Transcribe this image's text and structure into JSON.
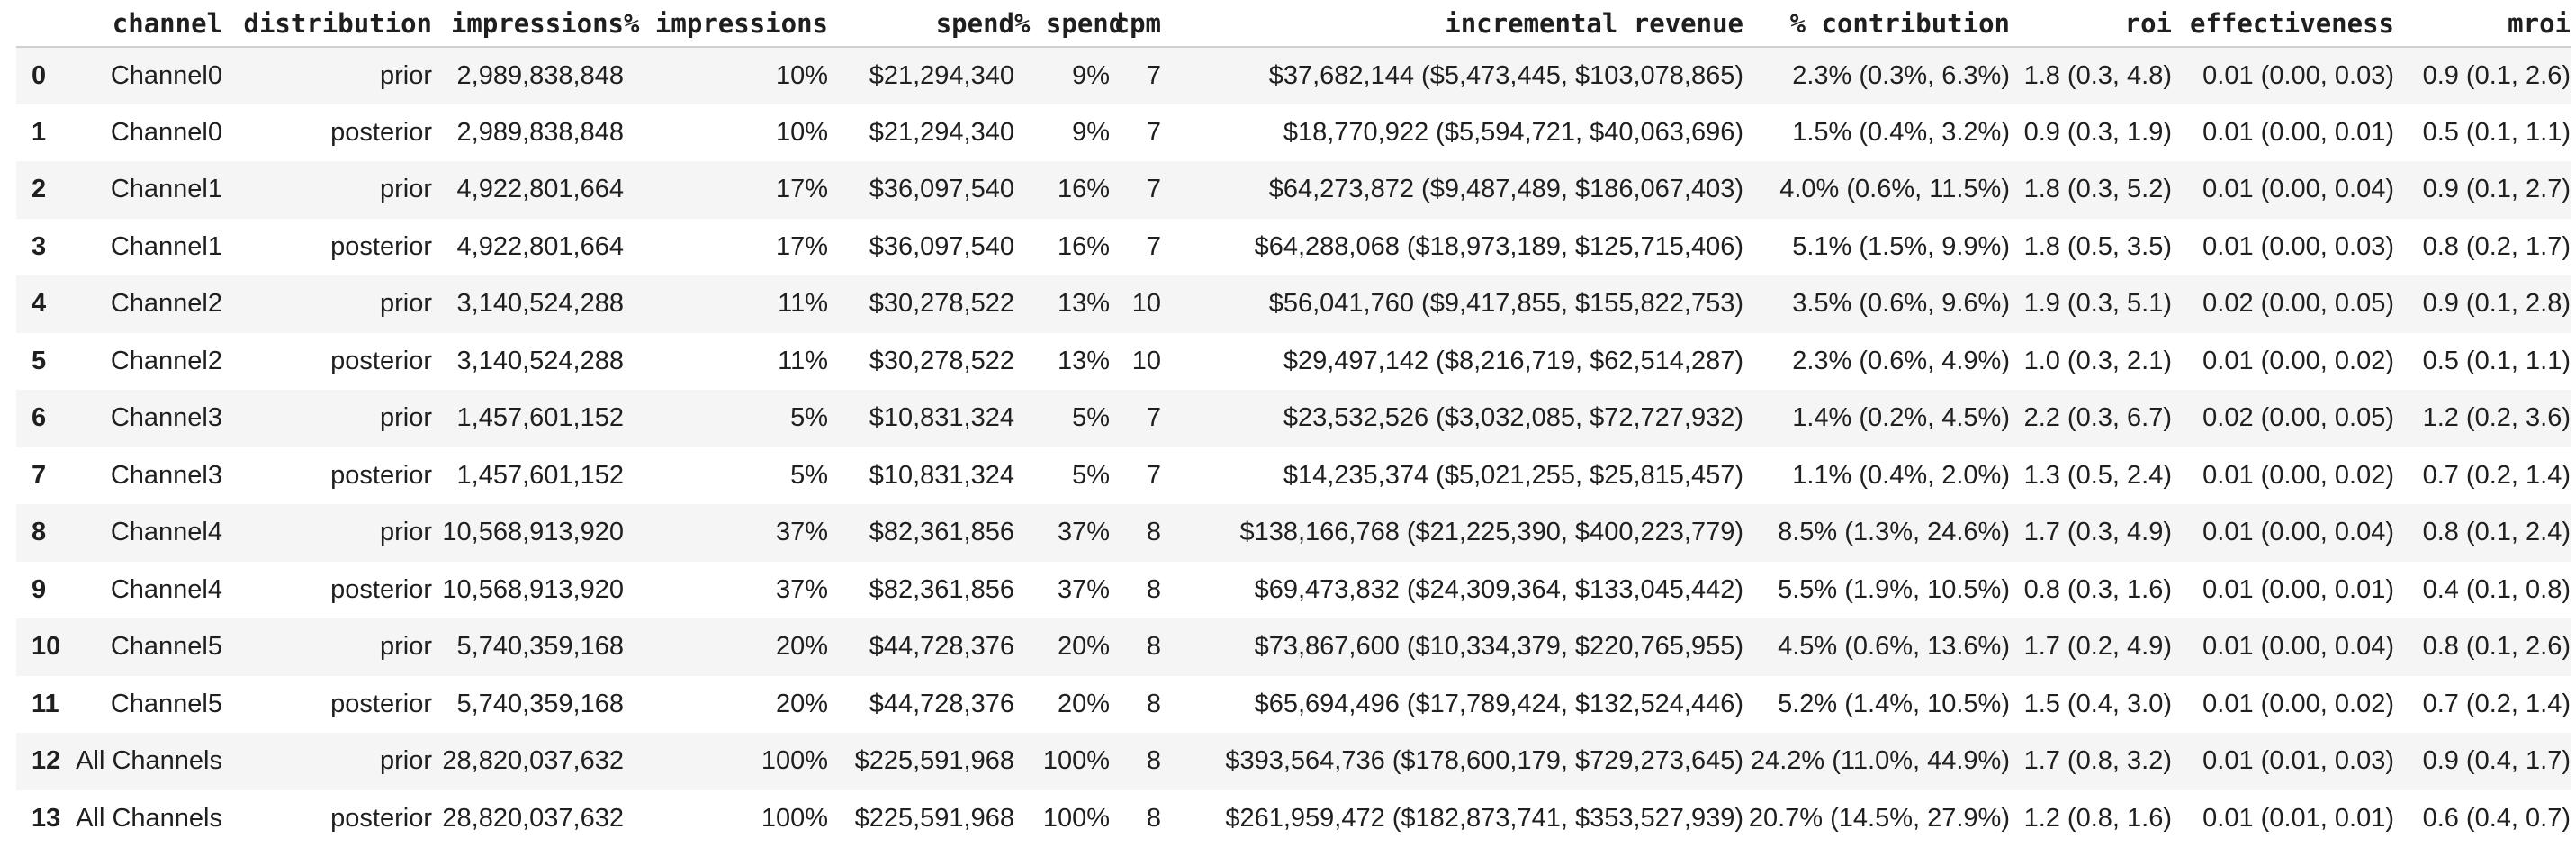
{
  "table": {
    "columns": [
      "",
      "channel",
      "distribution",
      "impressions",
      "% impressions",
      "spend",
      "% spend",
      "cpm",
      "incremental revenue",
      "% contribution",
      "roi",
      "effectiveness",
      "mroi"
    ],
    "rows": [
      [
        "0",
        "Channel0",
        "prior",
        "2,989,838,848",
        "10%",
        "$21,294,340",
        "9%",
        "7",
        "$37,682,144 ($5,473,445, $103,078,865)",
        "2.3% (0.3%, 6.3%)",
        "1.8 (0.3, 4.8)",
        "0.01 (0.00, 0.03)",
        "0.9 (0.1, 2.6)"
      ],
      [
        "1",
        "Channel0",
        "posterior",
        "2,989,838,848",
        "10%",
        "$21,294,340",
        "9%",
        "7",
        "$18,770,922 ($5,594,721, $40,063,696)",
        "1.5% (0.4%, 3.2%)",
        "0.9 (0.3, 1.9)",
        "0.01 (0.00, 0.01)",
        "0.5 (0.1, 1.1)"
      ],
      [
        "2",
        "Channel1",
        "prior",
        "4,922,801,664",
        "17%",
        "$36,097,540",
        "16%",
        "7",
        "$64,273,872 ($9,487,489, $186,067,403)",
        "4.0% (0.6%, 11.5%)",
        "1.8 (0.3, 5.2)",
        "0.01 (0.00, 0.04)",
        "0.9 (0.1, 2.7)"
      ],
      [
        "3",
        "Channel1",
        "posterior",
        "4,922,801,664",
        "17%",
        "$36,097,540",
        "16%",
        "7",
        "$64,288,068 ($18,973,189, $125,715,406)",
        "5.1% (1.5%, 9.9%)",
        "1.8 (0.5, 3.5)",
        "0.01 (0.00, 0.03)",
        "0.8 (0.2, 1.7)"
      ],
      [
        "4",
        "Channel2",
        "prior",
        "3,140,524,288",
        "11%",
        "$30,278,522",
        "13%",
        "10",
        "$56,041,760 ($9,417,855, $155,822,753)",
        "3.5% (0.6%, 9.6%)",
        "1.9 (0.3, 5.1)",
        "0.02 (0.00, 0.05)",
        "0.9 (0.1, 2.8)"
      ],
      [
        "5",
        "Channel2",
        "posterior",
        "3,140,524,288",
        "11%",
        "$30,278,522",
        "13%",
        "10",
        "$29,497,142 ($8,216,719, $62,514,287)",
        "2.3% (0.6%, 4.9%)",
        "1.0 (0.3, 2.1)",
        "0.01 (0.00, 0.02)",
        "0.5 (0.1, 1.1)"
      ],
      [
        "6",
        "Channel3",
        "prior",
        "1,457,601,152",
        "5%",
        "$10,831,324",
        "5%",
        "7",
        "$23,532,526 ($3,032,085, $72,727,932)",
        "1.4% (0.2%, 4.5%)",
        "2.2 (0.3, 6.7)",
        "0.02 (0.00, 0.05)",
        "1.2 (0.2, 3.6)"
      ],
      [
        "7",
        "Channel3",
        "posterior",
        "1,457,601,152",
        "5%",
        "$10,831,324",
        "5%",
        "7",
        "$14,235,374 ($5,021,255, $25,815,457)",
        "1.1% (0.4%, 2.0%)",
        "1.3 (0.5, 2.4)",
        "0.01 (0.00, 0.02)",
        "0.7 (0.2, 1.4)"
      ],
      [
        "8",
        "Channel4",
        "prior",
        "10,568,913,920",
        "37%",
        "$82,361,856",
        "37%",
        "8",
        "$138,166,768 ($21,225,390, $400,223,779)",
        "8.5% (1.3%, 24.6%)",
        "1.7 (0.3, 4.9)",
        "0.01 (0.00, 0.04)",
        "0.8 (0.1, 2.4)"
      ],
      [
        "9",
        "Channel4",
        "posterior",
        "10,568,913,920",
        "37%",
        "$82,361,856",
        "37%",
        "8",
        "$69,473,832 ($24,309,364, $133,045,442)",
        "5.5% (1.9%, 10.5%)",
        "0.8 (0.3, 1.6)",
        "0.01 (0.00, 0.01)",
        "0.4 (0.1, 0.8)"
      ],
      [
        "10",
        "Channel5",
        "prior",
        "5,740,359,168",
        "20%",
        "$44,728,376",
        "20%",
        "8",
        "$73,867,600 ($10,334,379, $220,765,955)",
        "4.5% (0.6%, 13.6%)",
        "1.7 (0.2, 4.9)",
        "0.01 (0.00, 0.04)",
        "0.8 (0.1, 2.6)"
      ],
      [
        "11",
        "Channel5",
        "posterior",
        "5,740,359,168",
        "20%",
        "$44,728,376",
        "20%",
        "8",
        "$65,694,496 ($17,789,424, $132,524,446)",
        "5.2% (1.4%, 10.5%)",
        "1.5 (0.4, 3.0)",
        "0.01 (0.00, 0.02)",
        "0.7 (0.2, 1.4)"
      ],
      [
        "12",
        "All Channels",
        "prior",
        "28,820,037,632",
        "100%",
        "$225,591,968",
        "100%",
        "8",
        "$393,564,736 ($178,600,179, $729,273,645)",
        "24.2% (11.0%, 44.9%)",
        "1.7 (0.8, 3.2)",
        "0.01 (0.01, 0.03)",
        "0.9 (0.4, 1.7)"
      ],
      [
        "13",
        "All Channels",
        "posterior",
        "28,820,037,632",
        "100%",
        "$225,591,968",
        "100%",
        "8",
        "$261,959,472 ($182,873,741, $353,527,939)",
        "20.7% (14.5%, 27.9%)",
        "1.2 (0.8, 1.6)",
        "0.01 (0.01, 0.01)",
        "0.6 (0.4, 0.7)"
      ]
    ],
    "style": {
      "stripe_color": "#f5f5f5",
      "text_color": "#1f1f1f",
      "header_border_color": "#d0d0d0"
    }
  }
}
